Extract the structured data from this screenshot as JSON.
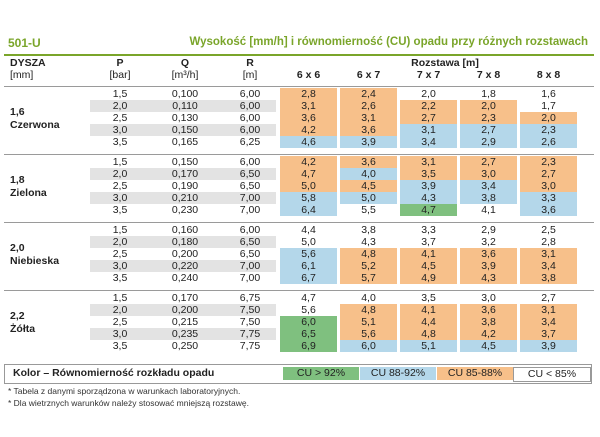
{
  "header": {
    "model": "501-U",
    "title": "Wysokość [mm/h] i równomierność (CU) opadu przy różnych rozstawach"
  },
  "columns": {
    "dysza": "DYSZA",
    "dysza_unit": "[mm]",
    "p": "P",
    "p_unit": "[bar]",
    "q": "Q",
    "q_unit": "[m³/h]",
    "r": "R",
    "r_unit": "[m]",
    "rozstawa": "Rozstawa [m]",
    "spacings": [
      "6 x 6",
      "6 x 7",
      "7 x 7",
      "7 x 8",
      "8 x 8"
    ]
  },
  "colors": {
    "green": "#7fc07f",
    "blue": "#b4d7ea",
    "orange": "#f7c08a",
    "none": "#ffffff",
    "grey": "#e3e3e3",
    "accent": "#7aa52a"
  },
  "groups": [
    {
      "size": "1,6",
      "color_name": "Czerwona",
      "rows": [
        {
          "p": "1,5",
          "q": "0,100",
          "r": "6,00",
          "vals": [
            "2,8",
            "2,4",
            "2,0",
            "1,8",
            "1,6"
          ],
          "cls": [
            "o",
            "o",
            "n",
            "n",
            "n"
          ]
        },
        {
          "p": "2,0",
          "q": "0,110",
          "r": "6,00",
          "vals": [
            "3,1",
            "2,6",
            "2,2",
            "2,0",
            "1,7"
          ],
          "cls": [
            "o",
            "o",
            "o",
            "o",
            "n"
          ]
        },
        {
          "p": "2,5",
          "q": "0,130",
          "r": "6,00",
          "vals": [
            "3,6",
            "3,1",
            "2,7",
            "2,3",
            "2,0"
          ],
          "cls": [
            "o",
            "o",
            "o",
            "o",
            "o"
          ]
        },
        {
          "p": "3,0",
          "q": "0,150",
          "r": "6,00",
          "vals": [
            "4,2",
            "3,6",
            "3,1",
            "2,7",
            "2,3"
          ],
          "cls": [
            "o",
            "o",
            "b",
            "b",
            "b"
          ]
        },
        {
          "p": "3,5",
          "q": "0,165",
          "r": "6,25",
          "vals": [
            "4,6",
            "3,9",
            "3,4",
            "2,9",
            "2,6"
          ],
          "cls": [
            "b",
            "b",
            "b",
            "b",
            "b"
          ]
        }
      ]
    },
    {
      "size": "1,8",
      "color_name": "Zielona",
      "rows": [
        {
          "p": "1,5",
          "q": "0,150",
          "r": "6,00",
          "vals": [
            "4,2",
            "3,6",
            "3,1",
            "2,7",
            "2,3"
          ],
          "cls": [
            "o",
            "o",
            "o",
            "o",
            "o"
          ]
        },
        {
          "p": "2,0",
          "q": "0,170",
          "r": "6,50",
          "vals": [
            "4,7",
            "4,0",
            "3,5",
            "3,0",
            "2,7"
          ],
          "cls": [
            "o",
            "b",
            "o",
            "o",
            "o"
          ]
        },
        {
          "p": "2,5",
          "q": "0,190",
          "r": "6,50",
          "vals": [
            "5,0",
            "4,5",
            "3,9",
            "3,4",
            "3,0"
          ],
          "cls": [
            "o",
            "o",
            "b",
            "b",
            "o"
          ]
        },
        {
          "p": "3,0",
          "q": "0,210",
          "r": "7,00",
          "vals": [
            "5,8",
            "5,0",
            "4,3",
            "3,8",
            "3,3"
          ],
          "cls": [
            "b",
            "b",
            "b",
            "b",
            "b"
          ]
        },
        {
          "p": "3,5",
          "q": "0,230",
          "r": "7,00",
          "vals": [
            "6,4",
            "5,5",
            "4,7",
            "4,1",
            "3,6"
          ],
          "cls": [
            "b",
            "n",
            "g",
            "n",
            "b"
          ]
        }
      ]
    },
    {
      "size": "2,0",
      "color_name": "Niebieska",
      "rows": [
        {
          "p": "1,5",
          "q": "0,160",
          "r": "6,00",
          "vals": [
            "4,4",
            "3,8",
            "3,3",
            "2,9",
            "2,5"
          ],
          "cls": [
            "n",
            "n",
            "n",
            "n",
            "n"
          ]
        },
        {
          "p": "2,0",
          "q": "0,180",
          "r": "6,50",
          "vals": [
            "5,0",
            "4,3",
            "3,7",
            "3,2",
            "2,8"
          ],
          "cls": [
            "n",
            "n",
            "n",
            "n",
            "n"
          ]
        },
        {
          "p": "2,5",
          "q": "0,200",
          "r": "6,50",
          "vals": [
            "5,6",
            "4,8",
            "4,1",
            "3,6",
            "3,1"
          ],
          "cls": [
            "b",
            "o",
            "o",
            "o",
            "o"
          ]
        },
        {
          "p": "3,0",
          "q": "0,220",
          "r": "7,00",
          "vals": [
            "6,1",
            "5,2",
            "4,5",
            "3,9",
            "3,4"
          ],
          "cls": [
            "b",
            "o",
            "o",
            "o",
            "o"
          ]
        },
        {
          "p": "3,5",
          "q": "0,240",
          "r": "7,00",
          "vals": [
            "6,7",
            "5,7",
            "4,9",
            "4,3",
            "3,8"
          ],
          "cls": [
            "b",
            "o",
            "o",
            "o",
            "o"
          ]
        }
      ]
    },
    {
      "size": "2,2",
      "color_name": "Żółta",
      "rows": [
        {
          "p": "1,5",
          "q": "0,170",
          "r": "6,75",
          "vals": [
            "4,7",
            "4,0",
            "3,5",
            "3,0",
            "2,7"
          ],
          "cls": [
            "n",
            "n",
            "n",
            "n",
            "n"
          ]
        },
        {
          "p": "2,0",
          "q": "0,200",
          "r": "7,50",
          "vals": [
            "5,6",
            "4,8",
            "4,1",
            "3,6",
            "3,1"
          ],
          "cls": [
            "n",
            "o",
            "o",
            "o",
            "o"
          ]
        },
        {
          "p": "2,5",
          "q": "0,215",
          "r": "7,50",
          "vals": [
            "6,0",
            "5,1",
            "4,4",
            "3,8",
            "3,4"
          ],
          "cls": [
            "g",
            "o",
            "o",
            "o",
            "o"
          ]
        },
        {
          "p": "3,0",
          "q": "0,235",
          "r": "7,75",
          "vals": [
            "6,5",
            "5,6",
            "4,8",
            "4,2",
            "3,7"
          ],
          "cls": [
            "g",
            "o",
            "o",
            "o",
            "o"
          ]
        },
        {
          "p": "3,5",
          "q": "0,250",
          "r": "7,75",
          "vals": [
            "6,9",
            "6,0",
            "5,1",
            "4,5",
            "3,9"
          ],
          "cls": [
            "g",
            "b",
            "b",
            "b",
            "b"
          ]
        }
      ]
    }
  ],
  "legend": {
    "label": "Kolor – Równomierność rozkładu opadu",
    "items": [
      {
        "text": "CU > 92%",
        "cls": "g"
      },
      {
        "text": "CU 88-92%",
        "cls": "b"
      },
      {
        "text": "CU 85-88%",
        "cls": "o"
      },
      {
        "text": "CU < 85%",
        "cls": "n"
      }
    ]
  },
  "notes": [
    "* Tabela z danymi sporządzona w warunkach laboratoryjnych.",
    "* Dla wietrznych warunków należy stosować mniejszą rozstawę."
  ]
}
